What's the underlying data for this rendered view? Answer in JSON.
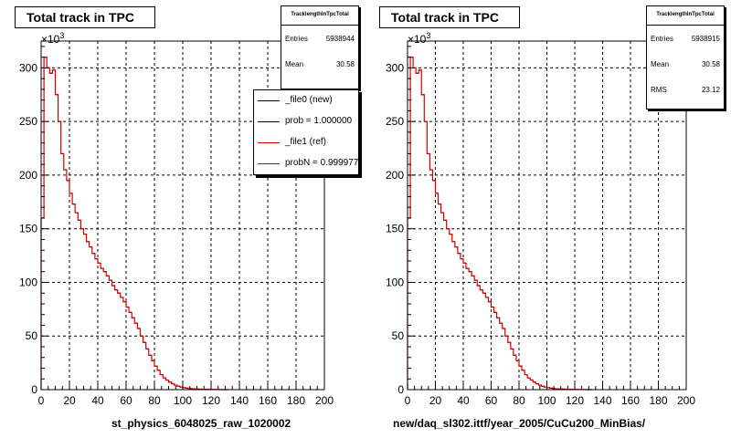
{
  "chart_data": [
    {
      "type": "area",
      "title": "Total track in TPC",
      "xlabel": "st_physics_6048025_raw_1020002",
      "ylabel": "",
      "y_exponent_label": "×10",
      "y_exponent_power": "3",
      "xlim": [
        0,
        200
      ],
      "ylim": [
        0,
        325
      ],
      "xticks": [
        0,
        20,
        40,
        60,
        80,
        100,
        120,
        140,
        160,
        180,
        200
      ],
      "yticks": [
        0,
        50,
        100,
        150,
        200,
        250,
        300
      ],
      "grid": true,
      "stats": {
        "name": "TracklengthInTpcTotal",
        "entries_label": "Entries",
        "entries_value": "5938944",
        "mean_label": "Mean",
        "mean_value": "30.58"
      },
      "legend": {
        "placement": "top-right",
        "entries": [
          {
            "label": "_file0 (new)",
            "color": "#000000"
          },
          {
            "label": "prob = 1.000000",
            "color": "#000000"
          },
          {
            "label": "_file1 (ref)",
            "color": "#cc0000"
          },
          {
            "label": "probN = 0.999977",
            "color": "#cc0000"
          }
        ]
      },
      "series": [
        {
          "color": "#cc0000",
          "x": [
            0,
            2,
            4,
            6,
            8,
            10,
            12,
            14,
            16,
            18,
            20,
            22,
            24,
            26,
            28,
            30,
            32,
            34,
            36,
            38,
            40,
            42,
            44,
            46,
            48,
            50,
            52,
            54,
            56,
            58,
            60,
            62,
            64,
            66,
            68,
            70,
            72,
            74,
            76,
            78,
            80,
            82,
            84,
            86,
            88,
            90,
            92,
            94,
            96,
            98,
            100,
            102,
            104,
            106,
            108,
            110,
            112,
            114,
            116,
            118,
            120,
            122,
            124,
            126,
            128,
            130
          ],
          "values": [
            160,
            310,
            300,
            295,
            298,
            275,
            250,
            220,
            205,
            195,
            183,
            173,
            165,
            158,
            150,
            145,
            138,
            133,
            127,
            122,
            118,
            113,
            110,
            106,
            102,
            97,
            93,
            90,
            86,
            82,
            77,
            72,
            67,
            62,
            57,
            50,
            44,
            38,
            32,
            27,
            22,
            18,
            14,
            11,
            9,
            7,
            5.5,
            4.2,
            3.2,
            2.4,
            1.8,
            1.4,
            1.0,
            0.8,
            0.6,
            0.5,
            0.4,
            0.3,
            0.25,
            0.2,
            0.15,
            0.1,
            0.08,
            0.05,
            0.03,
            0.02
          ]
        }
      ]
    },
    {
      "type": "area",
      "title": "Total track in TPC",
      "xlabel": "new/daq_sl302.ittf/year_2005/CuCu200_MinBias/",
      "ylabel": "",
      "y_exponent_label": "×10",
      "y_exponent_power": "3",
      "xlim": [
        0,
        200
      ],
      "ylim": [
        0,
        325
      ],
      "xticks": [
        0,
        20,
        40,
        60,
        80,
        100,
        120,
        140,
        160,
        180,
        200
      ],
      "yticks": [
        0,
        50,
        100,
        150,
        200,
        250,
        300
      ],
      "grid": true,
      "stats": {
        "name": "TracklengthInTpcTotal",
        "entries_label": "Entries",
        "entries_value": "5938915",
        "mean_label": "Mean",
        "mean_value": "30.58",
        "rms_label": "RMS",
        "rms_value": "23.12"
      },
      "series": [
        {
          "color": "#cc0000",
          "x": [
            0,
            2,
            4,
            6,
            8,
            10,
            12,
            14,
            16,
            18,
            20,
            22,
            24,
            26,
            28,
            30,
            32,
            34,
            36,
            38,
            40,
            42,
            44,
            46,
            48,
            50,
            52,
            54,
            56,
            58,
            60,
            62,
            64,
            66,
            68,
            70,
            72,
            74,
            76,
            78,
            80,
            82,
            84,
            86,
            88,
            90,
            92,
            94,
            96,
            98,
            100,
            102,
            104,
            106,
            108,
            110,
            112,
            114,
            116,
            118,
            120,
            122,
            124,
            126,
            128,
            130
          ],
          "values": [
            160,
            310,
            300,
            295,
            298,
            275,
            250,
            220,
            205,
            195,
            183,
            173,
            165,
            158,
            150,
            145,
            138,
            133,
            127,
            122,
            118,
            113,
            110,
            106,
            102,
            97,
            93,
            90,
            86,
            82,
            77,
            72,
            67,
            62,
            57,
            50,
            44,
            38,
            32,
            27,
            22,
            18,
            14,
            11,
            9,
            7,
            5.5,
            4.2,
            3.2,
            2.4,
            1.8,
            1.4,
            1.0,
            0.8,
            0.6,
            0.5,
            0.4,
            0.3,
            0.25,
            0.2,
            0.15,
            0.1,
            0.08,
            0.05,
            0.03,
            0.02
          ]
        }
      ]
    }
  ]
}
